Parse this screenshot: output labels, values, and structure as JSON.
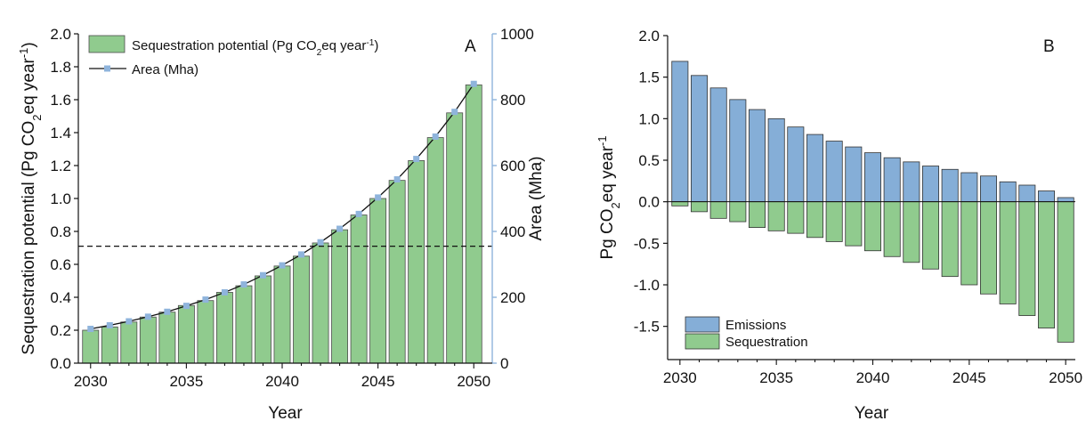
{
  "chart_data": [
    {
      "type": "bar",
      "panel_label": "A",
      "x": [
        2030,
        2031,
        2032,
        2033,
        2034,
        2035,
        2036,
        2037,
        2038,
        2039,
        2040,
        2041,
        2042,
        2043,
        2044,
        2045,
        2046,
        2047,
        2048,
        2049,
        2050
      ],
      "xticks": [
        "2030",
        "2035",
        "2040",
        "2045",
        "2050"
      ],
      "xlabel": "Year",
      "ylabel": "Sequestration potential (Pg CO2eq year-1)",
      "ylabel_parts": {
        "main": "Sequestration potential (Pg CO",
        "sub": "2",
        "mid": "eq year",
        "sup": "-1",
        "end": ")"
      },
      "ylim": [
        0,
        2.0
      ],
      "yticks": [
        "0.0",
        "0.2",
        "0.4",
        "0.6",
        "0.8",
        "1.0",
        "1.2",
        "1.4",
        "1.6",
        "1.8",
        "2.0"
      ],
      "y2label": "Area (Mha)",
      "y2lim": [
        0,
        1000
      ],
      "y2ticks": [
        "0",
        "200",
        "400",
        "600",
        "800",
        "1000"
      ],
      "reference_line_y": 0.71,
      "series": [
        {
          "name": "Sequestration potential (Pg CO2eq year-1)",
          "legend_parts": {
            "main": "Sequestration potential (Pg CO",
            "sub": "2",
            "mid": "eq year",
            "sup": "-1",
            "end": ")"
          },
          "kind": "bar",
          "color": "#90cb8e",
          "values": [
            0.2,
            0.22,
            0.25,
            0.28,
            0.31,
            0.35,
            0.38,
            0.43,
            0.47,
            0.53,
            0.59,
            0.65,
            0.73,
            0.81,
            0.9,
            1.0,
            1.11,
            1.23,
            1.37,
            1.52,
            1.69
          ]
        },
        {
          "name": "Area (Mha)",
          "kind": "line",
          "color": "#111111",
          "marker_color": "#8fb4dc",
          "values": [
            104,
            115,
            127,
            141,
            156,
            174,
            193,
            215,
            239,
            267,
            297,
            330,
            367,
            408,
            453,
            503,
            558,
            620,
            688,
            763,
            848
          ]
        }
      ]
    },
    {
      "type": "bar",
      "panel_label": "B",
      "x": [
        2030,
        2031,
        2032,
        2033,
        2034,
        2035,
        2036,
        2037,
        2038,
        2039,
        2040,
        2041,
        2042,
        2043,
        2044,
        2045,
        2046,
        2047,
        2048,
        2049,
        2050
      ],
      "xticks": [
        "2030",
        "2035",
        "2040",
        "2045",
        "2050"
      ],
      "xlabel": "Year",
      "ylabel": "Pg CO2eq year-1",
      "ylabel_parts": {
        "main": "Pg CO",
        "sub": "2",
        "mid": "eq year",
        "sup": "-1",
        "end": ""
      },
      "ylim": [
        -1.9,
        2.0
      ],
      "yticks": [
        "2.0",
        "1.5",
        "1.0",
        "0.5",
        "0.0",
        "-0.5",
        "-1.0",
        "-1.5"
      ],
      "legend_position": "bottom-left",
      "series": [
        {
          "name": "Emissions",
          "color": "#85aed7",
          "values": [
            1.69,
            1.52,
            1.37,
            1.23,
            1.11,
            1.0,
            0.9,
            0.81,
            0.73,
            0.66,
            0.59,
            0.53,
            0.48,
            0.43,
            0.39,
            0.35,
            0.31,
            0.24,
            0.2,
            0.13,
            0.05
          ]
        },
        {
          "name": "Sequestration",
          "color": "#90cb8e",
          "values": [
            -0.05,
            -0.12,
            -0.2,
            -0.24,
            -0.31,
            -0.35,
            -0.38,
            -0.43,
            -0.48,
            -0.53,
            -0.59,
            -0.66,
            -0.73,
            -0.81,
            -0.9,
            -1.0,
            -1.11,
            -1.23,
            -1.37,
            -1.52,
            -1.69
          ]
        }
      ]
    }
  ]
}
